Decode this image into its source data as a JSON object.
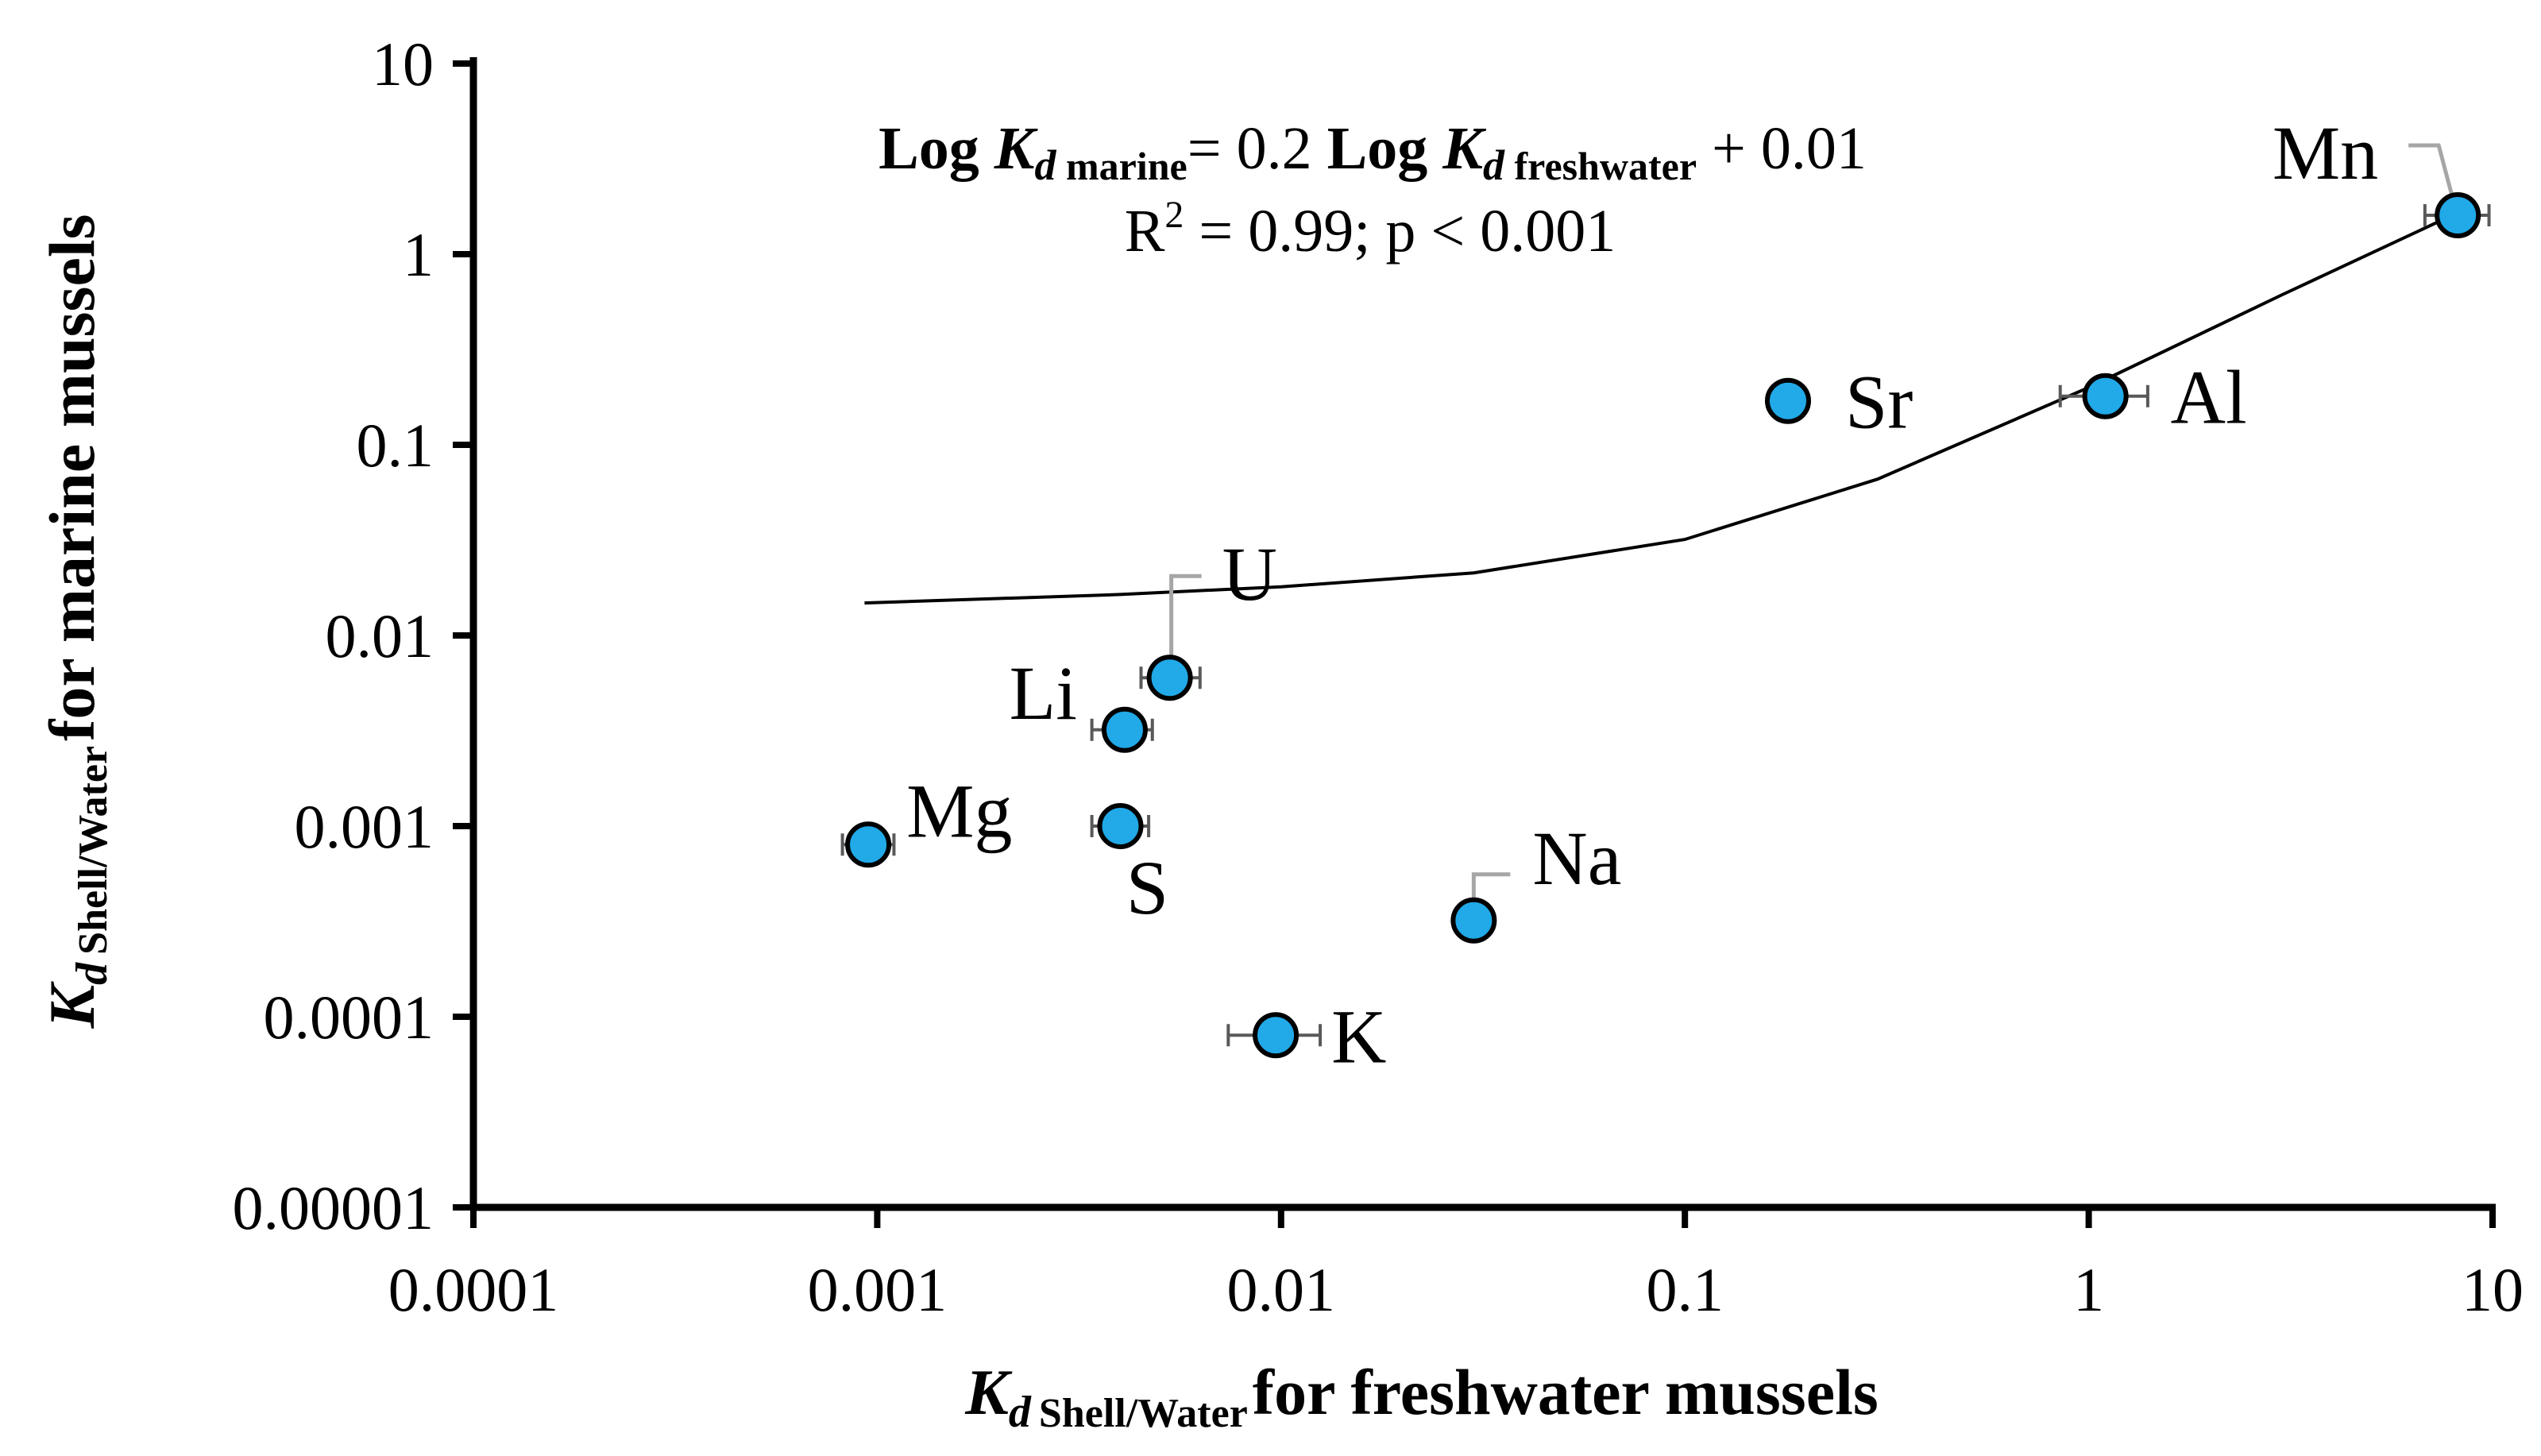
{
  "chart_data": {
    "type": "scatter",
    "title": "",
    "scale": "log-log",
    "xlim": [
      0.0001,
      10
    ],
    "ylim": [
      1e-05,
      10
    ],
    "x_ticks": [
      {
        "v": 0.0001,
        "label": "0.0001"
      },
      {
        "v": 0.001,
        "label": "0.001"
      },
      {
        "v": 0.01,
        "label": "0.01"
      },
      {
        "v": 0.1,
        "label": "0.1"
      },
      {
        "v": 1,
        "label": "1"
      },
      {
        "v": 10,
        "label": "10"
      }
    ],
    "y_ticks": [
      {
        "v": 1e-05,
        "label": "0.00001"
      },
      {
        "v": 0.0001,
        "label": "0.0001"
      },
      {
        "v": 0.001,
        "label": "0.001"
      },
      {
        "v": 0.01,
        "label": "0.01"
      },
      {
        "v": 0.1,
        "label": "0.1"
      },
      {
        "v": 1,
        "label": "1"
      },
      {
        "v": 10,
        "label": "10"
      }
    ],
    "xlabel": {
      "symbol": "K",
      "subscript_d": "d",
      "subscript": "Shell/Water",
      "rest": "for freshwater mussels"
    },
    "ylabel": {
      "symbol": "K",
      "subscript_d": "d",
      "subscript": "Shell/Water",
      "rest": "for marine mussels"
    },
    "points": [
      {
        "element": "Mn",
        "x": 8.2,
        "y": 1.6,
        "x_err": [
          6.8,
          9.8
        ]
      },
      {
        "element": "Al",
        "x": 1.1,
        "y": 0.18,
        "x_err": [
          0.85,
          1.4
        ]
      },
      {
        "element": "Sr",
        "x": 0.18,
        "y": 0.17
      },
      {
        "element": "U",
        "x": 0.0053,
        "y": 0.006,
        "x_err": [
          0.0045,
          0.0063
        ]
      },
      {
        "element": "Li",
        "x": 0.0041,
        "y": 0.0032,
        "x_err": [
          0.0034,
          0.0048
        ]
      },
      {
        "element": "Mg",
        "x": 0.00095,
        "y": 0.0008,
        "x_err": [
          0.00082,
          0.0011
        ]
      },
      {
        "element": "S",
        "x": 0.004,
        "y": 0.001,
        "x_err": [
          0.0034,
          0.0047
        ]
      },
      {
        "element": "Na",
        "x": 0.03,
        "y": 0.00032
      },
      {
        "element": "K",
        "x": 0.0097,
        "y": 8e-05,
        "x_err": [
          0.0074,
          0.0125
        ]
      }
    ],
    "trendline": {
      "type": "linear fit (displayed on log axes)",
      "x": [
        0.00093,
        0.004,
        0.01,
        0.03,
        0.1,
        0.3,
        1,
        3,
        8.2
      ],
      "y": [
        0.0148,
        0.0164,
        0.018,
        0.0213,
        0.0319,
        0.0661,
        0.2,
        0.61,
        1.65
      ]
    },
    "annotation": {
      "equation_parts": {
        "log1": "Log ",
        "k1": "K",
        "d1": "d",
        "marine": " marine",
        "mid": "= 0.2 ",
        "log2": "Log ",
        "k2": "K",
        "d2": "d",
        "fresh": " freshwater",
        "end": " + 0.01"
      },
      "stats_parts": {
        "r": "R",
        "sup": "2",
        "rest": " = 0.99; p < 0.001"
      }
    },
    "colors": {
      "marker_fill": "#21A9E8",
      "marker_edge": "#000000",
      "leader_line": "#A6A6A6",
      "error_bar": "#595959",
      "trendline": "#000000",
      "axis": "#000000"
    }
  }
}
